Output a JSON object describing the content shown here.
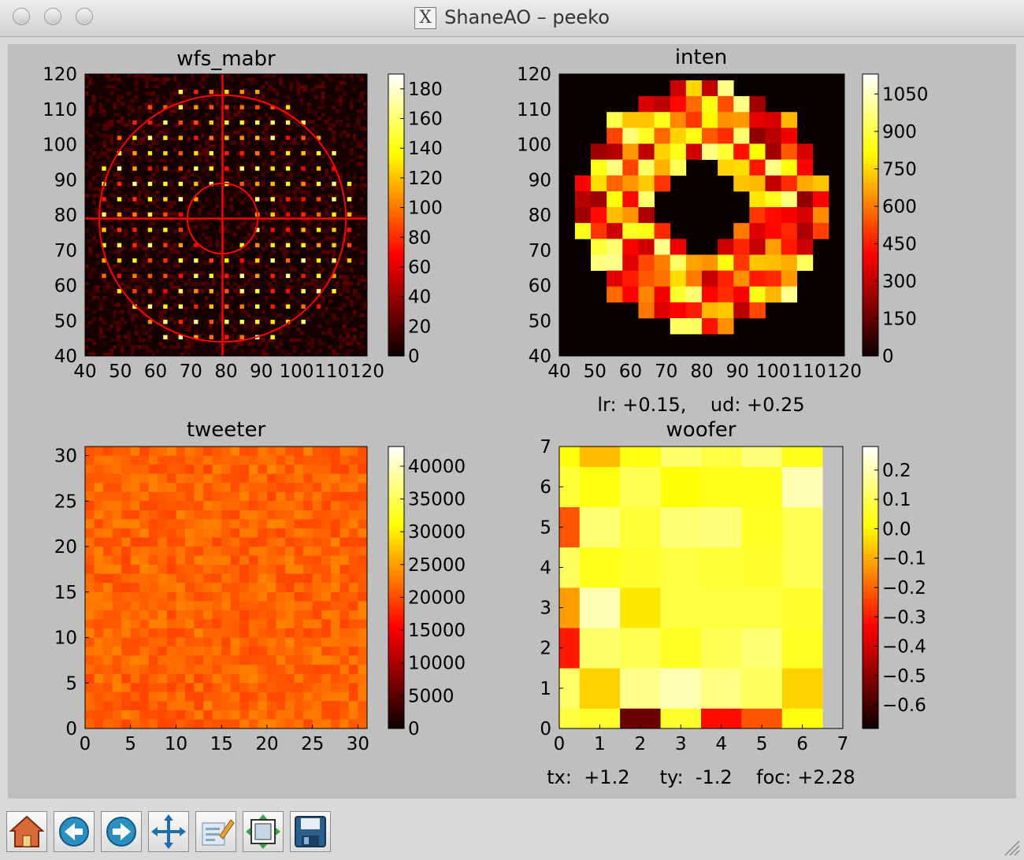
{
  "window": {
    "title": "ShaneAO – peeko",
    "x_icon": "X"
  },
  "panels": {
    "wfs": {
      "title": "wfs_mabr"
    },
    "inten": {
      "title": "inten"
    },
    "tweeter": {
      "title": "tweeter"
    },
    "woofer": {
      "title": "woofer"
    }
  },
  "readouts": {
    "lr_ud": "lr: +0.15,    ud: +0.25",
    "tip_tilt_focus": "tx:  +1.2     ty:  -1.2    foc: +2.28"
  },
  "toolbar": {
    "buttons": [
      {
        "name": "home-icon"
      },
      {
        "name": "back-icon"
      },
      {
        "name": "forward-icon"
      },
      {
        "name": "pan-icon"
      },
      {
        "name": "zoom-icon"
      },
      {
        "name": "subplots-icon"
      },
      {
        "name": "save-icon"
      }
    ]
  },
  "chart_data": [
    {
      "type": "heatmap",
      "title": "wfs_mabr",
      "xlim": [
        40,
        120
      ],
      "ylim": [
        40,
        120
      ],
      "x_ticks": [
        "40",
        "50",
        "60",
        "70",
        "80",
        "90",
        "100",
        "110",
        "120"
      ],
      "y_ticks": [
        "40",
        "50",
        "60",
        "70",
        "80",
        "90",
        "100",
        "110",
        "120"
      ],
      "colorbar": {
        "min": 0,
        "max": 190,
        "ticks": [
          "0",
          "20",
          "40",
          "60",
          "80",
          "100",
          "120",
          "140",
          "160",
          "180"
        ]
      },
      "overlay": {
        "crosshair": [
          79,
          79
        ],
        "circles": [
          10,
          35
        ],
        "color": "#ff0000"
      },
      "colormap": "hot"
    },
    {
      "type": "heatmap",
      "title": "inten",
      "xlim": [
        40,
        120
      ],
      "ylim": [
        40,
        120
      ],
      "x_ticks": [
        "40",
        "50",
        "60",
        "70",
        "80",
        "90",
        "100",
        "110",
        "120"
      ],
      "y_ticks": [
        "40",
        "50",
        "60",
        "70",
        "80",
        "90",
        "100",
        "110",
        "120"
      ],
      "colorbar": {
        "min": 0,
        "max": 1130,
        "ticks": [
          "0",
          "150",
          "300",
          "450",
          "600",
          "750",
          "900",
          "1050"
        ]
      },
      "colormap": "hot"
    },
    {
      "type": "heatmap",
      "title": "tweeter",
      "xlim": [
        0,
        31
      ],
      "ylim": [
        0,
        31
      ],
      "x_ticks": [
        "0",
        "5",
        "10",
        "15",
        "20",
        "25",
        "30"
      ],
      "y_ticks": [
        "0",
        "5",
        "10",
        "15",
        "20",
        "25",
        "30"
      ],
      "colorbar": {
        "min": 0,
        "max": 43000,
        "ticks": [
          "0",
          "5000",
          "10000",
          "15000",
          "20000",
          "25000",
          "30000",
          "35000",
          "40000"
        ]
      },
      "colormap": "hot"
    },
    {
      "type": "heatmap",
      "title": "woofer",
      "xlim": [
        0,
        7
      ],
      "ylim": [
        0,
        7
      ],
      "x_ticks": [
        "0",
        "1",
        "2",
        "3",
        "4",
        "5",
        "6",
        "7"
      ],
      "y_ticks": [
        "0",
        "1",
        "2",
        "3",
        "4",
        "5",
        "6",
        "7"
      ],
      "colorbar": {
        "min": -0.68,
        "max": 0.28,
        "ticks": [
          "−0.6",
          "−0.5",
          "−0.4",
          "−0.3",
          "−0.2",
          "−0.1",
          "0.0",
          "0.1",
          "0.2"
        ]
      },
      "values": [
        [
          0.08,
          0.06,
          -0.55,
          0.06,
          -0.32,
          -0.22,
          0.03
        ],
        [
          0.12,
          -0.05,
          0.16,
          0.2,
          0.15,
          0.11,
          -0.05
        ],
        [
          -0.3,
          0.12,
          0.1,
          0.05,
          0.1,
          0.13,
          0.05
        ],
        [
          -0.12,
          0.2,
          -0.02,
          0.08,
          0.08,
          0.08,
          0.06
        ],
        [
          0.11,
          0.04,
          0.06,
          0.08,
          0.07,
          0.06,
          0.1
        ],
        [
          -0.22,
          0.13,
          0.07,
          0.13,
          0.14,
          0.05,
          0.1
        ],
        [
          0.07,
          0.03,
          0.1,
          0.02,
          0.04,
          0.04,
          0.2
        ],
        [
          0.02,
          -0.08,
          0.03,
          0.12,
          0.08,
          0.14,
          0.04
        ]
      ],
      "colormap": "hot"
    }
  ]
}
